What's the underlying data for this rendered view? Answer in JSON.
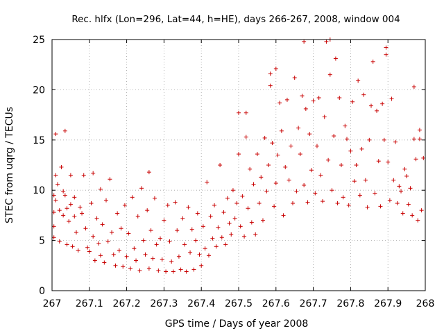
{
  "chart_data": {
    "type": "scatter",
    "title": "Rec. hlfx (Lon=296, Lat=44, h=HE), days 266-267, 2008, window 004",
    "xlabel": "GPS time / Days of year 2008",
    "ylabel": "STEC from uqrg / TECUs",
    "xlim": [
      267,
      268
    ],
    "ylim": [
      0,
      25
    ],
    "xticks": [
      "267",
      "267.1",
      "267.2",
      "267.3",
      "267.4",
      "267.5",
      "267.6",
      "267.7",
      "267.8",
      "267.9",
      "268"
    ],
    "yticks": [
      "0",
      "5",
      "10",
      "15",
      "20",
      "25"
    ],
    "grid": true,
    "marker": "plus",
    "color": "#c80000",
    "series_points": [
      [
        267.005,
        9.5
      ],
      [
        267.005,
        7.8
      ],
      [
        267.005,
        6.4
      ],
      [
        267.005,
        5.3
      ],
      [
        267.01,
        11.5
      ],
      [
        267.01,
        15.6
      ],
      [
        267.01,
        9.0
      ],
      [
        267.015,
        10.6
      ],
      [
        267.02,
        8.0
      ],
      [
        267.02,
        4.9
      ],
      [
        267.025,
        12.3
      ],
      [
        267.03,
        9.9
      ],
      [
        267.03,
        7.5
      ],
      [
        267.035,
        15.9
      ],
      [
        267.035,
        9.5
      ],
      [
        267.04,
        8.2
      ],
      [
        267.04,
        4.6
      ],
      [
        267.045,
        6.9
      ],
      [
        267.05,
        11.5
      ],
      [
        267.05,
        8.6
      ],
      [
        267.055,
        4.4
      ],
      [
        267.06,
        7.4
      ],
      [
        267.06,
        9.3
      ],
      [
        267.065,
        5.8
      ],
      [
        267.07,
        4.0
      ],
      [
        267.075,
        8.3
      ],
      [
        267.08,
        7.7
      ],
      [
        267.085,
        11.5
      ],
      [
        267.09,
        6.2
      ],
      [
        267.095,
        4.3
      ],
      [
        267.1,
        3.9
      ],
      [
        267.105,
        8.7
      ],
      [
        267.11,
        11.7
      ],
      [
        267.11,
        5.4
      ],
      [
        267.115,
        3.0
      ],
      [
        267.12,
        7.2
      ],
      [
        267.125,
        4.7
      ],
      [
        267.13,
        10.1
      ],
      [
        267.13,
        3.5
      ],
      [
        267.135,
        6.6
      ],
      [
        267.14,
        2.8
      ],
      [
        267.145,
        9.0
      ],
      [
        267.15,
        4.9
      ],
      [
        267.155,
        11.1
      ],
      [
        267.16,
        5.8
      ],
      [
        267.165,
        3.6
      ],
      [
        267.17,
        2.5
      ],
      [
        267.175,
        7.7
      ],
      [
        267.18,
        4.0
      ],
      [
        267.185,
        6.2
      ],
      [
        267.19,
        2.4
      ],
      [
        267.195,
        8.5
      ],
      [
        267.2,
        3.4
      ],
      [
        267.205,
        5.7
      ],
      [
        267.21,
        2.2
      ],
      [
        267.215,
        9.3
      ],
      [
        267.22,
        4.2
      ],
      [
        267.225,
        3.0
      ],
      [
        267.23,
        7.4
      ],
      [
        267.235,
        2.0
      ],
      [
        267.24,
        10.2
      ],
      [
        267.245,
        5.0
      ],
      [
        267.25,
        3.6
      ],
      [
        267.255,
        8.0
      ],
      [
        267.26,
        11.8
      ],
      [
        267.26,
        2.2
      ],
      [
        267.265,
        6.0
      ],
      [
        267.27,
        3.2
      ],
      [
        267.275,
        9.2
      ],
      [
        267.28,
        4.6
      ],
      [
        267.285,
        2.0
      ],
      [
        267.29,
        5.2
      ],
      [
        267.295,
        3.1
      ],
      [
        267.3,
        7.0
      ],
      [
        267.305,
        1.9
      ],
      [
        267.31,
        8.5
      ],
      [
        267.315,
        4.9
      ],
      [
        267.32,
        2.9
      ],
      [
        267.325,
        1.9
      ],
      [
        267.33,
        8.8
      ],
      [
        267.335,
        6.0
      ],
      [
        267.34,
        3.4
      ],
      [
        267.345,
        2.1
      ],
      [
        267.35,
        7.2
      ],
      [
        267.355,
        4.6
      ],
      [
        267.36,
        1.9
      ],
      [
        267.365,
        8.3
      ],
      [
        267.37,
        3.8
      ],
      [
        267.375,
        6.1
      ],
      [
        267.38,
        2.1
      ],
      [
        267.385,
        5.0
      ],
      [
        267.39,
        7.7
      ],
      [
        267.395,
        3.6
      ],
      [
        267.4,
        2.5
      ],
      [
        267.405,
        6.4
      ],
      [
        267.41,
        4.2
      ],
      [
        267.415,
        10.8
      ],
      [
        267.42,
        3.5
      ],
      [
        267.425,
        7.4
      ],
      [
        267.43,
        5.2
      ],
      [
        267.435,
        8.5
      ],
      [
        267.44,
        4.4
      ],
      [
        267.445,
        6.3
      ],
      [
        267.45,
        12.5
      ],
      [
        267.455,
        5.3
      ],
      [
        267.46,
        7.8
      ],
      [
        267.465,
        4.6
      ],
      [
        267.47,
        9.2
      ],
      [
        267.475,
        6.7
      ],
      [
        267.48,
        5.6
      ],
      [
        267.485,
        10.0
      ],
      [
        267.49,
        7.2
      ],
      [
        267.495,
        8.7
      ],
      [
        267.5,
        13.6
      ],
      [
        267.5,
        17.7
      ],
      [
        267.505,
        6.4
      ],
      [
        267.51,
        9.4
      ],
      [
        267.515,
        5.4
      ],
      [
        267.52,
        15.3
      ],
      [
        267.52,
        17.7
      ],
      [
        267.525,
        8.2
      ],
      [
        267.53,
        12.1
      ],
      [
        267.535,
        6.8
      ],
      [
        267.54,
        10.6
      ],
      [
        267.545,
        5.6
      ],
      [
        267.55,
        13.6
      ],
      [
        267.555,
        8.7
      ],
      [
        267.56,
        11.3
      ],
      [
        267.565,
        7.0
      ],
      [
        267.57,
        15.2
      ],
      [
        267.575,
        9.9
      ],
      [
        267.58,
        12.5
      ],
      [
        267.585,
        21.6
      ],
      [
        267.585,
        20.4
      ],
      [
        267.59,
        14.7
      ],
      [
        267.595,
        8.4
      ],
      [
        267.6,
        22.1
      ],
      [
        267.6,
        10.7
      ],
      [
        267.605,
        13.5
      ],
      [
        267.61,
        18.7
      ],
      [
        267.615,
        15.9
      ],
      [
        267.62,
        7.5
      ],
      [
        267.625,
        12.3
      ],
      [
        267.63,
        19.0
      ],
      [
        267.635,
        11.0
      ],
      [
        267.64,
        14.4
      ],
      [
        267.645,
        8.7
      ],
      [
        267.65,
        21.2
      ],
      [
        267.655,
        9.9
      ],
      [
        267.66,
        16.2
      ],
      [
        267.665,
        13.6
      ],
      [
        267.67,
        19.4
      ],
      [
        267.675,
        24.8
      ],
      [
        267.675,
        10.5
      ],
      [
        267.68,
        18.1
      ],
      [
        267.685,
        8.8
      ],
      [
        267.69,
        15.6
      ],
      [
        267.695,
        12.0
      ],
      [
        267.7,
        18.9
      ],
      [
        267.705,
        9.7
      ],
      [
        267.71,
        14.4
      ],
      [
        267.715,
        19.2
      ],
      [
        267.72,
        11.5
      ],
      [
        267.725,
        8.9
      ],
      [
        267.73,
        17.3
      ],
      [
        267.735,
        24.8
      ],
      [
        267.74,
        13.0
      ],
      [
        267.745,
        21.5
      ],
      [
        267.745,
        25.0
      ],
      [
        267.75,
        10.0
      ],
      [
        267.755,
        15.4
      ],
      [
        267.76,
        23.1
      ],
      [
        267.765,
        8.7
      ],
      [
        267.77,
        19.2
      ],
      [
        267.775,
        12.5
      ],
      [
        267.78,
        9.3
      ],
      [
        267.785,
        16.4
      ],
      [
        267.79,
        15.1
      ],
      [
        267.795,
        8.5
      ],
      [
        267.8,
        13.9
      ],
      [
        267.805,
        18.8
      ],
      [
        267.81,
        10.9
      ],
      [
        267.815,
        12.5
      ],
      [
        267.82,
        20.9
      ],
      [
        267.825,
        9.5
      ],
      [
        267.83,
        14.1
      ],
      [
        267.835,
        19.5
      ],
      [
        267.84,
        11.0
      ],
      [
        267.845,
        8.3
      ],
      [
        267.85,
        15.0
      ],
      [
        267.855,
        18.4
      ],
      [
        267.86,
        22.8
      ],
      [
        267.865,
        9.7
      ],
      [
        267.87,
        17.9
      ],
      [
        267.875,
        12.9
      ],
      [
        267.88,
        8.4
      ],
      [
        267.885,
        18.6
      ],
      [
        267.89,
        15.0
      ],
      [
        267.895,
        24.2
      ],
      [
        267.895,
        23.5
      ],
      [
        267.9,
        12.8
      ],
      [
        267.905,
        9.0
      ],
      [
        267.91,
        19.1
      ],
      [
        267.915,
        11.0
      ],
      [
        267.92,
        14.8
      ],
      [
        267.925,
        8.7
      ],
      [
        267.93,
        10.4
      ],
      [
        267.935,
        9.9
      ],
      [
        267.94,
        7.7
      ],
      [
        267.945,
        12.1
      ],
      [
        267.95,
        11.4
      ],
      [
        267.955,
        8.6
      ],
      [
        267.96,
        10.2
      ],
      [
        267.965,
        7.5
      ],
      [
        267.97,
        20.3
      ],
      [
        267.97,
        15.1
      ],
      [
        267.975,
        13.1
      ],
      [
        267.98,
        7.0
      ],
      [
        267.985,
        16.0
      ],
      [
        267.985,
        15.1
      ],
      [
        267.99,
        8.0
      ],
      [
        267.995,
        13.2
      ]
    ]
  }
}
